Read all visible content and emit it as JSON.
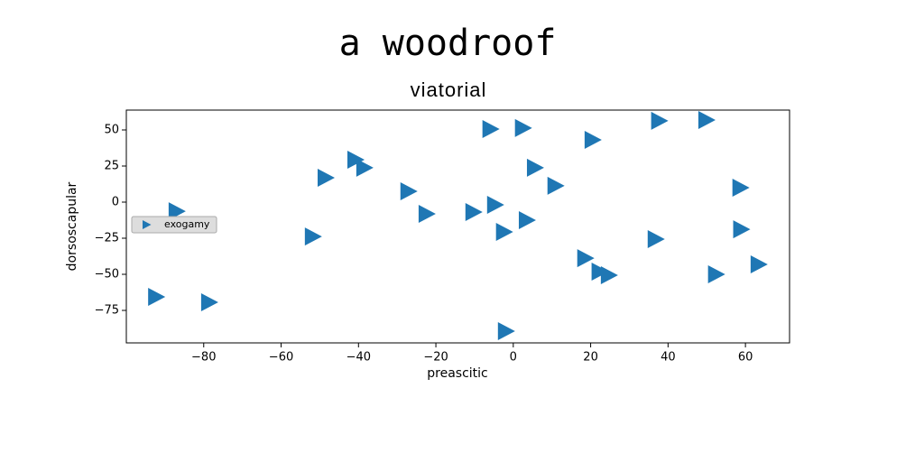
{
  "chart_data": {
    "type": "scatter",
    "title": "a woodroof",
    "subtitle": "viatorial",
    "x_label": "preascitic",
    "y_label": "dorsoscapular",
    "series": [
      {
        "name": "exogamy",
        "color": "#1f77b4",
        "x": [
          -6.1,
          2.3,
          37.5,
          49.7,
          20.3,
          -41,
          -38.7,
          -48.7,
          5.4,
          10.7,
          -27.3,
          58.5,
          -87.2,
          -22.6,
          -10.5,
          -4.9,
          3.3,
          -2.6,
          -52,
          36.6,
          58.7,
          18.4,
          22.1,
          24.5,
          52.2,
          63.2,
          -92.5,
          -78.8,
          -2.1
        ],
        "values": [
          50.6,
          51.3,
          56.3,
          56.9,
          43.1,
          29.4,
          23.8,
          16.9,
          23.8,
          11.3,
          7.5,
          10,
          -6.3,
          -8.1,
          -6.9,
          -1.9,
          -12.5,
          -20.6,
          -23.8,
          -25.6,
          -18.8,
          -38.8,
          -48.1,
          -50.6,
          -50,
          -43.1,
          -65.6,
          -69.4,
          -89.4
        ]
      }
    ],
    "xlim": [
      -100,
      71.4
    ],
    "ylim": [
      -97.5,
      63.75
    ],
    "xticks": [
      {
        "value": -80,
        "label": "−80"
      },
      {
        "value": -60,
        "label": "−60"
      },
      {
        "value": -40,
        "label": "−40"
      },
      {
        "value": -20,
        "label": "−20"
      },
      0,
      20,
      40,
      60
    ],
    "yticks": [
      {
        "value": -75,
        "label": "−75"
      },
      {
        "value": -50,
        "label": "−50"
      },
      {
        "value": -25,
        "label": "−25"
      },
      0,
      25,
      50
    ],
    "legend": "center left",
    "grid": false
  }
}
